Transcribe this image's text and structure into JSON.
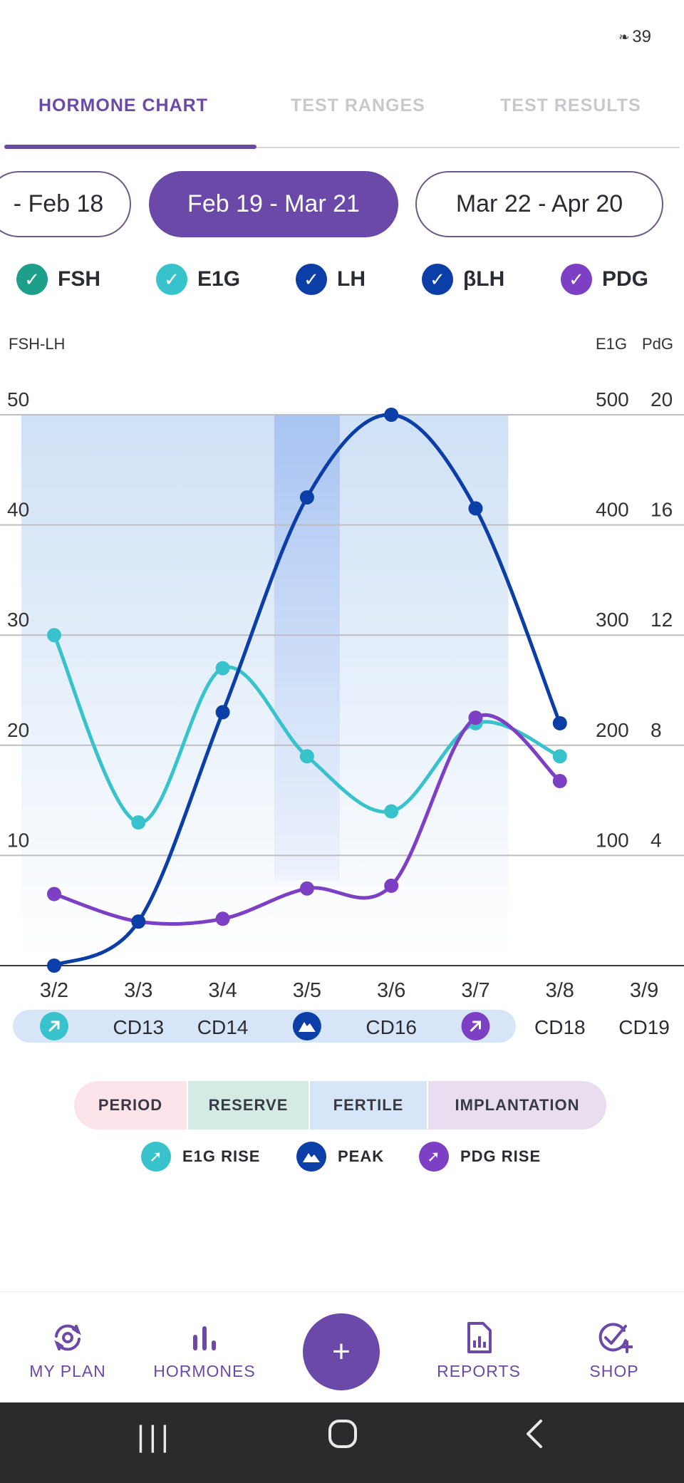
{
  "status": {
    "battery": "39"
  },
  "tabs": [
    {
      "label": "HORMONE CHART",
      "active": true
    },
    {
      "label": "TEST RANGES",
      "active": false
    },
    {
      "label": "TEST RESULTS",
      "active": false
    }
  ],
  "cycles": [
    {
      "label": "- Feb 18",
      "active": false
    },
    {
      "label": "Feb 19 - Mar 21",
      "active": true
    },
    {
      "label": "Mar 22 - Apr 20",
      "active": false
    }
  ],
  "filters": [
    {
      "label": "FSH",
      "color": "#1e9f8c"
    },
    {
      "label": "E1G",
      "color": "#38c3cc"
    },
    {
      "label": "LH",
      "color": "#0c3ea8"
    },
    {
      "label": "βLH",
      "color": "#0c3ea8"
    },
    {
      "label": "PDG",
      "color": "#7d3fc4"
    }
  ],
  "axis_titles": {
    "left": "FSH-LH",
    "right_e1g": "E1G",
    "right_pdg": "PdG"
  },
  "chart_data": {
    "type": "line",
    "categories": [
      "3/2",
      "3/3",
      "3/4",
      "3/5",
      "3/6",
      "3/7",
      "3/8",
      "3/9"
    ],
    "cycle_days": [
      "",
      "CD13",
      "CD14",
      "",
      "CD16",
      "",
      "CD18",
      "CD19"
    ],
    "yticks_left": [
      "50",
      "40",
      "30",
      "20",
      "10"
    ],
    "yticks_e1g": [
      "500",
      "400",
      "300",
      "200",
      "100"
    ],
    "yticks_pdg": [
      "20",
      "16",
      "12",
      "8",
      "4"
    ],
    "ylim_left": [
      0,
      50
    ],
    "series": [
      {
        "label": "LH",
        "axis": "left",
        "color": "#0c3ea8",
        "values": [
          0,
          4,
          23,
          42.5,
          50,
          41.5,
          22,
          null
        ]
      },
      {
        "label": "E1G",
        "axis": "e1g",
        "color": "#38c3cc",
        "values": [
          300,
          130,
          270,
          190,
          140,
          220,
          190,
          null
        ]
      },
      {
        "label": "PDG",
        "axis": "pdg",
        "color": "#7d3fc4",
        "values": [
          2.6,
          1.6,
          1.7,
          2.8,
          2.9,
          9.0,
          6.7,
          null
        ]
      }
    ],
    "events": [
      {
        "index": 0,
        "type": "E1G RISE",
        "color": "#38c3cc"
      },
      {
        "index": 3,
        "type": "PEAK",
        "color": "#0c3ea8"
      },
      {
        "index": 5,
        "type": "PDG RISE",
        "color": "#7d3fc4"
      }
    ],
    "fertile_window": [
      0,
      5
    ],
    "peak_band": 3,
    "grid": true
  },
  "phases": [
    {
      "label": "PERIOD",
      "color": "#fde3ea"
    },
    {
      "label": "RESERVE",
      "color": "#d4ebe5"
    },
    {
      "label": "FERTILE",
      "color": "#d6e6f8"
    },
    {
      "label": "IMPLANTATION",
      "color": "#e9ddf0"
    }
  ],
  "legend_events": [
    {
      "label": "E1G RISE",
      "color": "#38c3cc",
      "icon": "arrow-up-right-icon"
    },
    {
      "label": "PEAK",
      "color": "#0c3ea8",
      "icon": "mountain-peak-icon"
    },
    {
      "label": "PDG RISE",
      "color": "#7d3fc4",
      "icon": "arrow-up-right-icon"
    }
  ],
  "nav": {
    "my_plan": "MY PLAN",
    "hormones": "HORMONES",
    "add": "+",
    "reports": "REPORTS",
    "shop": "SHOP"
  }
}
